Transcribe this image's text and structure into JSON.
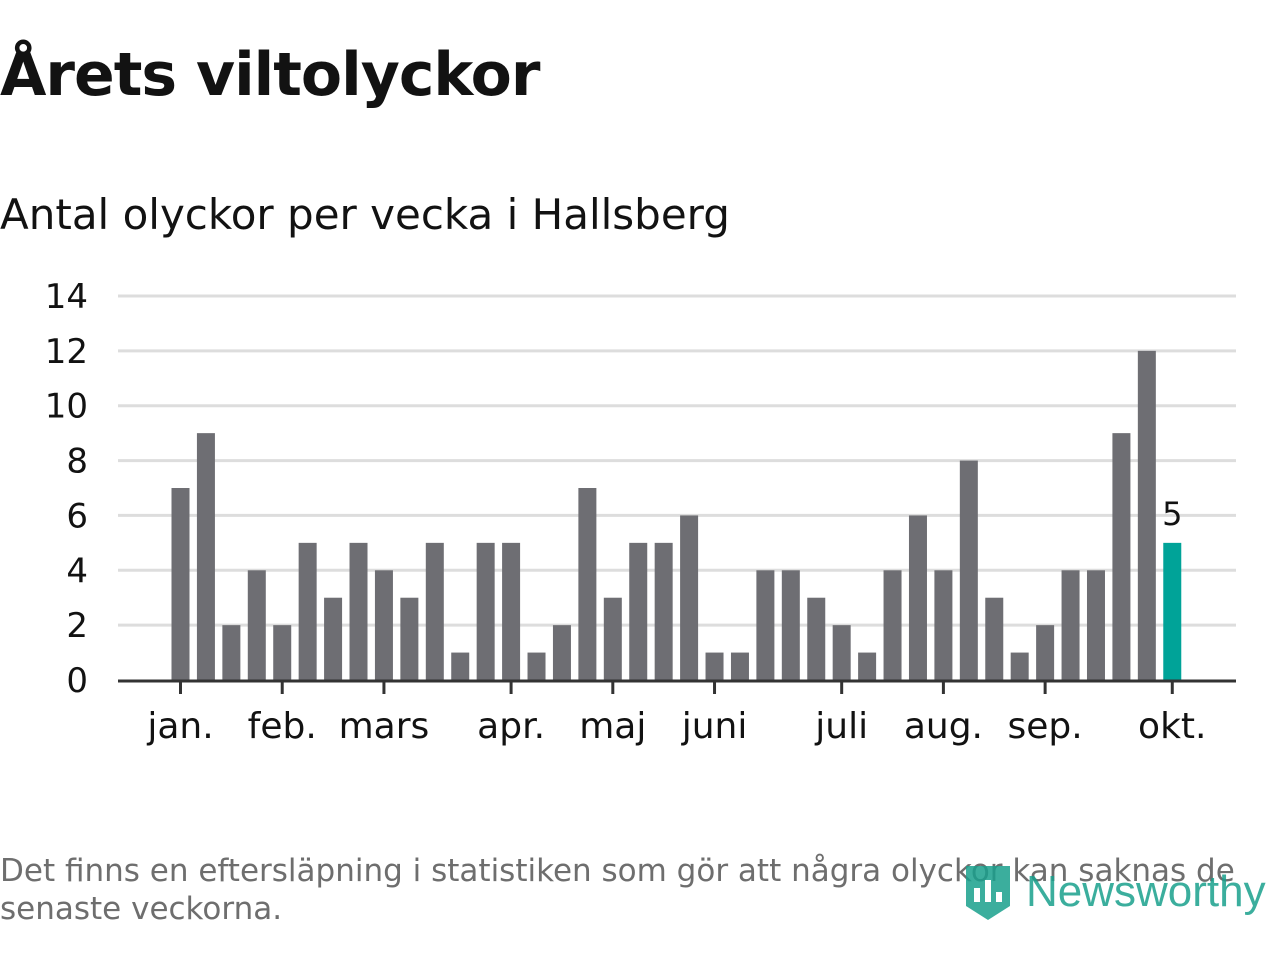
{
  "title": "Årets viltolyckor",
  "subtitle": "Antal olyckor per vecka i Hallsberg",
  "footnote": "Det finns en eftersläpning i statistiken som gör att några olyckor kan saknas de senaste veckorna.",
  "logo": {
    "text": "Newsworthy",
    "icon": "newsworthy-chart-icon"
  },
  "colors": {
    "bar": "#6e6e73",
    "highlight": "#00a398",
    "grid": "#dddddd",
    "axis": "#333333",
    "text": "#121212"
  },
  "chart_data": {
    "type": "bar",
    "title": "Antal olyckor per vecka i Hallsberg",
    "xlabel": "",
    "ylabel": "",
    "ylim": [
      0,
      14
    ],
    "yticks": [
      0,
      2,
      4,
      6,
      8,
      10,
      12,
      14
    ],
    "grid": true,
    "weeks": [
      1,
      2,
      3,
      4,
      5,
      6,
      7,
      8,
      9,
      10,
      11,
      12,
      13,
      14,
      15,
      16,
      17,
      18,
      19,
      20,
      21,
      22,
      23,
      24,
      25,
      26,
      27,
      28,
      29,
      30,
      31,
      32,
      33,
      34,
      35,
      36,
      37,
      38,
      39,
      40
    ],
    "values": [
      7,
      9,
      2,
      4,
      2,
      5,
      3,
      5,
      4,
      3,
      5,
      1,
      5,
      5,
      1,
      2,
      7,
      3,
      5,
      5,
      6,
      1,
      1,
      4,
      4,
      3,
      2,
      1,
      4,
      6,
      4,
      8,
      3,
      1,
      2,
      4,
      4,
      9,
      12,
      5
    ],
    "month_ticks": [
      {
        "label": "jan.",
        "week_index": 0
      },
      {
        "label": "feb.",
        "week_index": 4
      },
      {
        "label": "mars",
        "week_index": 8
      },
      {
        "label": "apr.",
        "week_index": 13
      },
      {
        "label": "maj",
        "week_index": 17
      },
      {
        "label": "juni",
        "week_index": 21
      },
      {
        "label": "juli",
        "week_index": 26
      },
      {
        "label": "aug.",
        "week_index": 30
      },
      {
        "label": "sep.",
        "week_index": 34
      },
      {
        "label": "okt.",
        "week_index": 39
      }
    ],
    "highlight_index": 39,
    "highlight_label": "5"
  }
}
